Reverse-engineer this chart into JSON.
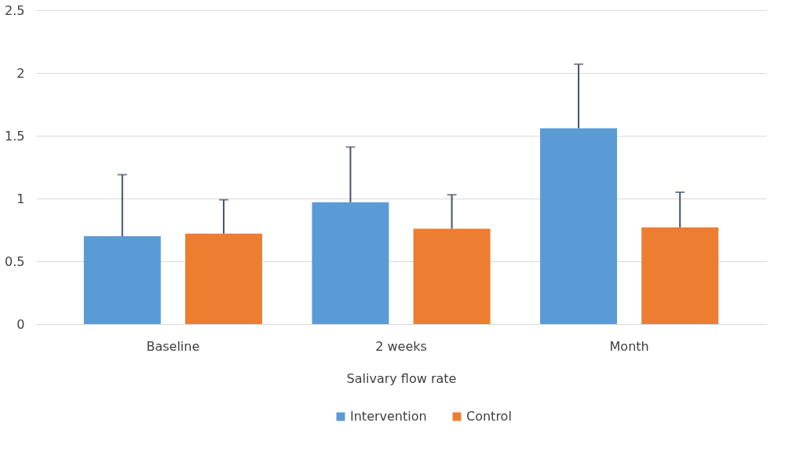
{
  "chart_data": {
    "type": "bar",
    "xlabel": "Salivary flow rate",
    "categories": [
      "Baseline",
      "2 weeks",
      "Month"
    ],
    "series": [
      {
        "name": "Intervention",
        "color": "#5b9bd5",
        "values": [
          0.7,
          0.97,
          1.56
        ],
        "errors": [
          [
            0.7,
            1.19
          ],
          [
            0.97,
            1.41
          ],
          [
            1.56,
            2.07
          ]
        ]
      },
      {
        "name": "Control",
        "color": "#ed7d31",
        "values": [
          0.72,
          0.76,
          0.77
        ],
        "errors": [
          [
            0.72,
            0.99
          ],
          [
            0.76,
            1.03
          ],
          [
            0.77,
            1.05
          ]
        ]
      }
    ],
    "ylim": [
      0,
      2.5
    ],
    "yticks": [
      0,
      0.5,
      1,
      1.5,
      2,
      2.5
    ],
    "grid": "y",
    "legend": "bottom"
  }
}
